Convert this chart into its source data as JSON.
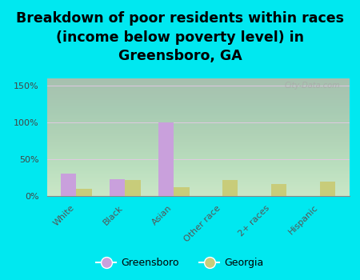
{
  "title": "Breakdown of poor residents within races\n(income below poverty level) in\nGreensboro, GA",
  "categories": [
    "White",
    "Black",
    "Asian",
    "Other race",
    "2+ races",
    "Hispanic"
  ],
  "greensboro_values": [
    30,
    23,
    100,
    0,
    0,
    0
  ],
  "georgia_values": [
    10,
    22,
    12,
    22,
    16,
    20
  ],
  "greensboro_color": "#c9a0dc",
  "georgia_color": "#c8cc7a",
  "background_color": "#00e8f0",
  "plot_bg_color": "#eef5e8",
  "ylim": [
    0,
    160
  ],
  "yticks": [
    0,
    50,
    100,
    150
  ],
  "ytick_labels": [
    "0%",
    "50%",
    "100%",
    "150%"
  ],
  "bar_width": 0.32,
  "title_fontsize": 12.5,
  "watermark": "City-Data.com",
  "legend_greensboro": "Greensboro",
  "legend_georgia": "Georgia"
}
